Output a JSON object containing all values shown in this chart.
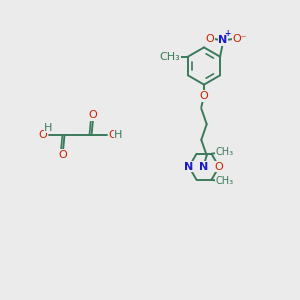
{
  "bg_color": "#ebebeb",
  "bond_color": "#3a7a5a",
  "bond_width": 1.4,
  "atom_colors": {
    "C": "#3a7a5a",
    "O": "#cc2200",
    "N": "#1a1acc"
  },
  "fs": 8,
  "fs_small": 7,
  "xlim": [
    0,
    10
  ],
  "ylim": [
    0,
    10
  ]
}
